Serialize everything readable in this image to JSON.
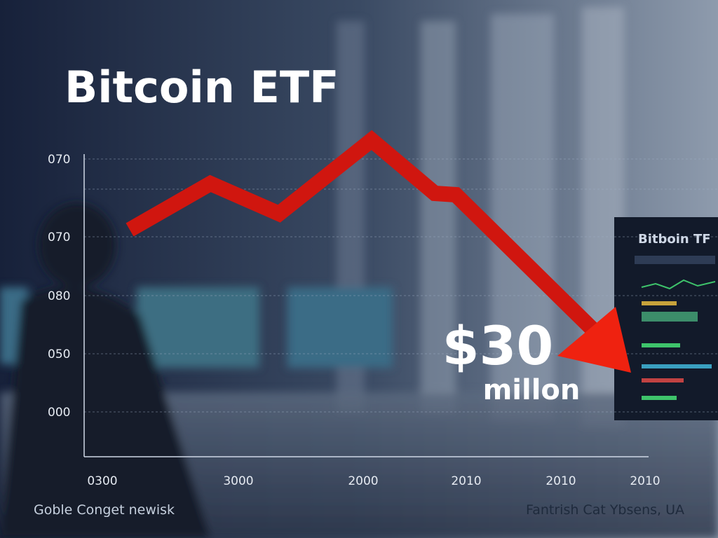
{
  "title": "Bitcoin ETF",
  "y_labels": [
    "070",
    "070",
    "080",
    "050",
    "000"
  ],
  "x_labels": [
    "0300",
    "3000",
    "2000",
    "2010",
    "2010",
    "2010"
  ],
  "callout": {
    "amount": "$30",
    "unit": "millon"
  },
  "footer": {
    "left": "Goble Conget newisk",
    "right": "Fantrish Cat Ybsens, UA"
  },
  "screen": {
    "title": "Bitboin TF"
  }
}
